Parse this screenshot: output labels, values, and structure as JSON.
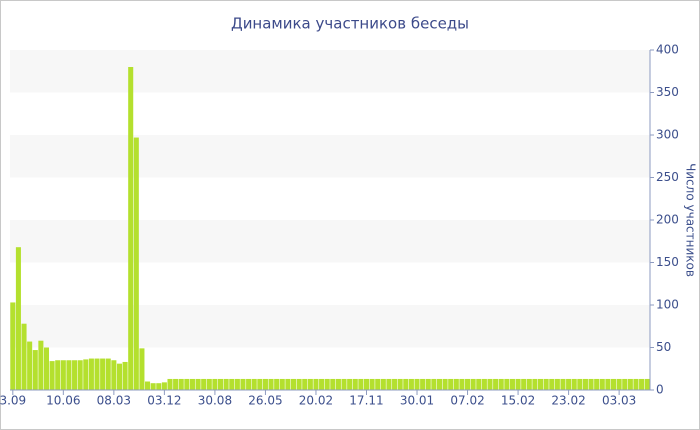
{
  "chart_data": {
    "type": "bar",
    "title": "Динамика участников беседы",
    "y_label": "Число участников",
    "categories": [
      "3.09",
      null,
      null,
      null,
      null,
      null,
      null,
      null,
      null,
      "10.06",
      null,
      null,
      null,
      null,
      null,
      null,
      null,
      null,
      "08.03",
      null,
      null,
      null,
      null,
      null,
      null,
      null,
      null,
      "03.12",
      null,
      null,
      null,
      null,
      null,
      null,
      null,
      null,
      "30.08",
      null,
      null,
      null,
      null,
      null,
      null,
      null,
      null,
      "26.05",
      null,
      null,
      null,
      null,
      null,
      null,
      null,
      null,
      "20.02",
      null,
      null,
      null,
      null,
      null,
      null,
      null,
      null,
      "17.11",
      null,
      null,
      null,
      null,
      null,
      null,
      null,
      null,
      "30.01",
      null,
      null,
      null,
      null,
      null,
      null,
      null,
      null,
      "07.02",
      null,
      null,
      null,
      null,
      null,
      null,
      null,
      null,
      "15.02",
      null,
      null,
      null,
      null,
      null,
      null,
      null,
      null,
      "23.02",
      null,
      null,
      null,
      null,
      null,
      null,
      null,
      null,
      "03.03",
      null,
      null,
      null,
      null,
      null
    ],
    "values": [
      103,
      168,
      78,
      57,
      47,
      58,
      50,
      34,
      35,
      35,
      35,
      35,
      35,
      36,
      37,
      37,
      37,
      37,
      35,
      31,
      33,
      380,
      297,
      49,
      10,
      8,
      8,
      9,
      13,
      13,
      13,
      13,
      13,
      13,
      13,
      13,
      13,
      13,
      13,
      13,
      13,
      13,
      13,
      13,
      13,
      13,
      13,
      13,
      13,
      13,
      13,
      13,
      13,
      13,
      13,
      13,
      13,
      13,
      13,
      13,
      13,
      13,
      13,
      13,
      13,
      13,
      13,
      13,
      13,
      13,
      13,
      13,
      13,
      13,
      13,
      13,
      13,
      13,
      13,
      13,
      13,
      13,
      13,
      13,
      13,
      13,
      13,
      13,
      13,
      13,
      13,
      13,
      13,
      13,
      13,
      13,
      13,
      13,
      13,
      13,
      13,
      13,
      13,
      13,
      13,
      13,
      13,
      13,
      13,
      13,
      13,
      13,
      13,
      13
    ],
    "color": "#b4e02e",
    "ylim": [
      0,
      400
    ],
    "yticks": [
      0,
      50,
      100,
      150,
      200,
      250,
      300,
      350,
      400
    ],
    "grid": "bands",
    "y_axis_side": "right"
  }
}
